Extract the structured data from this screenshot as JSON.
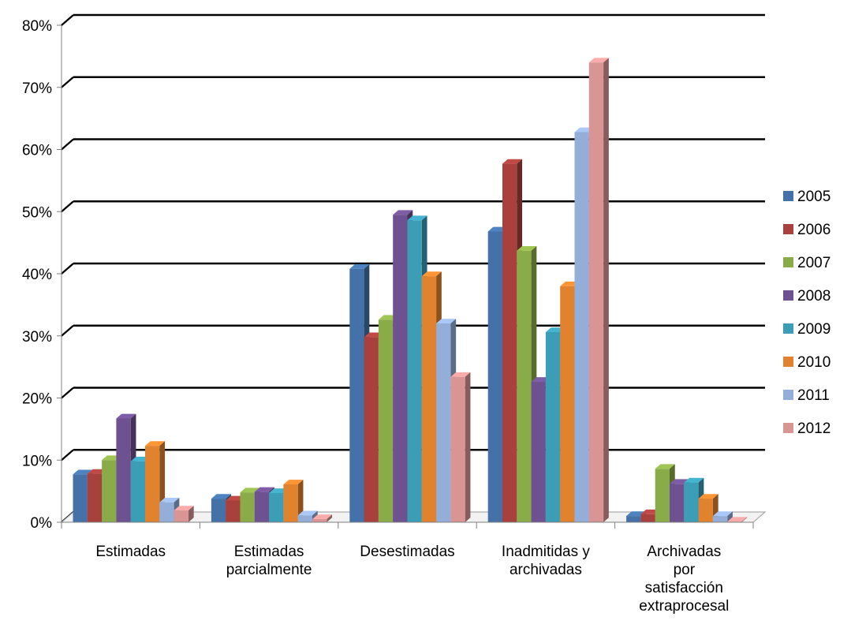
{
  "chart_data": {
    "type": "bar",
    "categories": [
      [
        "Estimadas"
      ],
      [
        "Estimadas",
        "parcialmente"
      ],
      [
        "Desestimadas"
      ],
      [
        "Inadmitidas y",
        "archivadas"
      ],
      [
        "Archivadas",
        "por",
        "satisfacción",
        "extraprocesal"
      ]
    ],
    "series": [
      {
        "name": "2005",
        "color": "#4472a8",
        "values": [
          7.7,
          3.8,
          40.8,
          46.8,
          1.0
        ]
      },
      {
        "name": "2006",
        "color": "#a8403e",
        "values": [
          7.8,
          3.5,
          29.8,
          57.7,
          1.3
        ]
      },
      {
        "name": "2007",
        "color": "#8aac48",
        "values": [
          10.0,
          4.8,
          32.6,
          43.7,
          8.6
        ]
      },
      {
        "name": "2008",
        "color": "#6e5190",
        "values": [
          16.7,
          4.9,
          49.5,
          22.6,
          6.2
        ]
      },
      {
        "name": "2009",
        "color": "#3b9db6",
        "values": [
          9.8,
          4.7,
          48.6,
          30.6,
          6.4
        ]
      },
      {
        "name": "2010",
        "color": "#e1822f",
        "values": [
          12.3,
          6.1,
          39.6,
          38.0,
          3.8
        ]
      },
      {
        "name": "2011",
        "color": "#93aed8",
        "values": [
          3.2,
          1.1,
          32.0,
          62.8,
          1.0
        ]
      },
      {
        "name": "2012",
        "color": "#d99594",
        "values": [
          1.9,
          0.5,
          23.4,
          74.0,
          0.1
        ]
      }
    ],
    "yticks": [
      "0%",
      "10%",
      "20%",
      "30%",
      "40%",
      "50%",
      "60%",
      "70%",
      "80%"
    ],
    "ylim": [
      0,
      80
    ],
    "grid": true,
    "legend_position": "right"
  }
}
